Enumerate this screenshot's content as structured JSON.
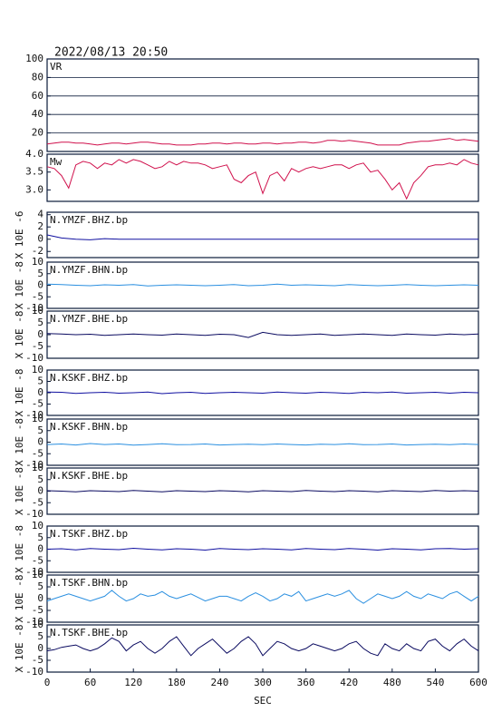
{
  "chart_data": [
    {
      "type": "line",
      "title": "2022/08/13 20:50",
      "label": "VR",
      "color": "#d0104c",
      "grid": true,
      "xlim": [
        0,
        600
      ],
      "ylim": [
        0,
        100
      ],
      "yticks": [
        20,
        40,
        60,
        80,
        100
      ],
      "x": [
        0,
        10,
        20,
        30,
        40,
        50,
        60,
        70,
        80,
        90,
        100,
        110,
        120,
        130,
        140,
        150,
        160,
        170,
        180,
        190,
        200,
        210,
        220,
        230,
        240,
        250,
        260,
        270,
        280,
        290,
        300,
        310,
        320,
        330,
        340,
        350,
        360,
        370,
        380,
        390,
        400,
        410,
        420,
        430,
        440,
        450,
        460,
        470,
        480,
        490,
        500,
        510,
        520,
        530,
        540,
        550,
        560,
        570,
        580,
        590,
        600
      ],
      "values": [
        8,
        9,
        10,
        10,
        9,
        9,
        8,
        7,
        8,
        9,
        9,
        8,
        9,
        10,
        10,
        9,
        8,
        8,
        7,
        7,
        7,
        8,
        8,
        9,
        9,
        8,
        9,
        9,
        8,
        8,
        9,
        9,
        8,
        9,
        9,
        10,
        10,
        9,
        10,
        12,
        12,
        11,
        12,
        11,
        10,
        9,
        7,
        7,
        7,
        7,
        9,
        10,
        11,
        11,
        12,
        13,
        14,
        12,
        13,
        12,
        11
      ]
    },
    {
      "type": "line",
      "label": "Mw",
      "color": "#d0104c",
      "xlim": [
        0,
        600
      ],
      "ylim": [
        2.68,
        4.0
      ],
      "yticks": [
        {
          "value": 3,
          "label": "3.0"
        },
        3.5,
        {
          "value": 4,
          "label": "4.0"
        }
      ],
      "x": [
        0,
        10,
        20,
        30,
        40,
        50,
        60,
        70,
        80,
        90,
        100,
        110,
        120,
        130,
        140,
        150,
        160,
        170,
        180,
        190,
        200,
        210,
        220,
        230,
        240,
        250,
        260,
        270,
        280,
        290,
        300,
        310,
        320,
        330,
        340,
        350,
        360,
        370,
        380,
        390,
        400,
        410,
        420,
        430,
        440,
        450,
        460,
        470,
        480,
        490,
        500,
        510,
        520,
        530,
        540,
        550,
        560,
        570,
        580,
        590,
        600
      ],
      "values": [
        3.65,
        3.6,
        3.4,
        3.05,
        3.7,
        3.8,
        3.75,
        3.6,
        3.75,
        3.7,
        3.85,
        3.75,
        3.85,
        3.8,
        3.7,
        3.6,
        3.65,
        3.8,
        3.7,
        3.8,
        3.75,
        3.75,
        3.7,
        3.6,
        3.65,
        3.7,
        3.3,
        3.2,
        3.4,
        3.5,
        2.9,
        3.4,
        3.5,
        3.25,
        3.6,
        3.5,
        3.6,
        3.65,
        3.6,
        3.65,
        3.7,
        3.7,
        3.6,
        3.7,
        3.75,
        3.5,
        3.55,
        3.3,
        3.0,
        3.2,
        2.75,
        3.2,
        3.4,
        3.65,
        3.7,
        3.7,
        3.75,
        3.7,
        3.85,
        3.75,
        3.7
      ]
    },
    {
      "type": "line",
      "label": "N.YMZF.BHZ.bp",
      "ylabel": "X 10E -6",
      "color": "#1010a0",
      "xlim": [
        0,
        600
      ],
      "ylim": [
        -3,
        4.4
      ],
      "yticks": [
        -2,
        0,
        2,
        4
      ],
      "x": [
        0,
        20,
        40,
        60,
        80,
        100,
        120,
        140,
        160,
        180,
        200,
        220,
        240,
        260,
        280,
        300,
        320,
        340,
        360,
        380,
        400,
        420,
        440,
        460,
        480,
        500,
        520,
        540,
        560,
        580,
        600
      ],
      "values": [
        0.7,
        0.2,
        0,
        -0.1,
        0.1,
        0,
        0,
        0,
        0,
        0,
        0,
        0,
        0,
        0,
        0,
        0,
        0,
        0,
        0,
        0,
        0,
        0,
        0,
        0,
        0,
        0,
        0,
        0,
        0,
        0,
        0
      ]
    },
    {
      "type": "line",
      "label": "N.YMZF.BHN.bp",
      "ylabel": "X 10E -8",
      "color": "#2a8fe0",
      "xlim": [
        0,
        600
      ],
      "ylim": [
        -10,
        10
      ],
      "yticks": [
        -10,
        -5,
        0,
        5,
        10
      ],
      "x": [
        0,
        20,
        40,
        60,
        80,
        100,
        120,
        140,
        160,
        180,
        200,
        220,
        240,
        260,
        280,
        300,
        320,
        340,
        360,
        380,
        400,
        420,
        440,
        460,
        480,
        500,
        520,
        540,
        560,
        580,
        600
      ],
      "values": [
        0.5,
        0.3,
        0,
        -0.2,
        0.2,
        0,
        0.3,
        -0.3,
        0,
        0.2,
        0,
        -0.2,
        0,
        0.3,
        -0.2,
        0,
        0.5,
        0,
        0.2,
        0,
        -0.2,
        0.3,
        0,
        -0.2,
        0,
        0.3,
        0,
        -0.2,
        0,
        0.2,
        0
      ]
    },
    {
      "type": "line",
      "label": "N.YMZF.BHE.bp",
      "ylabel": "X 10E -8",
      "color": "#0a0a60",
      "xlim": [
        0,
        600
      ],
      "ylim": [
        -10,
        10
      ],
      "yticks": [
        -10,
        -5,
        0,
        5,
        10
      ],
      "x": [
        0,
        20,
        40,
        60,
        80,
        100,
        120,
        140,
        160,
        180,
        200,
        220,
        240,
        260,
        280,
        300,
        320,
        340,
        360,
        380,
        400,
        420,
        440,
        460,
        480,
        500,
        520,
        540,
        560,
        580,
        600
      ],
      "values": [
        0.5,
        0.3,
        0,
        0.2,
        -0.3,
        0,
        0.3,
        0,
        -0.2,
        0.3,
        0,
        -0.3,
        0.2,
        0,
        -1.2,
        1,
        0,
        -0.3,
        0,
        0.3,
        -0.3,
        0,
        0.3,
        0,
        -0.3,
        0.3,
        0,
        -0.2,
        0.3,
        0,
        0.3
      ]
    },
    {
      "type": "line",
      "label": "N.KSKF.BHZ.bp",
      "ylabel": "X 10E -8",
      "color": "#1010a0",
      "xlim": [
        0,
        600
      ],
      "ylim": [
        -10,
        10
      ],
      "yticks": [
        -10,
        -5,
        0,
        5,
        10
      ],
      "x": [
        0,
        20,
        40,
        60,
        80,
        100,
        120,
        140,
        160,
        180,
        200,
        220,
        240,
        260,
        280,
        300,
        320,
        340,
        360,
        380,
        400,
        420,
        440,
        460,
        480,
        500,
        520,
        540,
        560,
        580,
        600
      ],
      "values": [
        0.3,
        0.2,
        -0.3,
        0,
        0.2,
        -0.2,
        0,
        0.3,
        -0.4,
        0,
        0.2,
        -0.3,
        0,
        0.2,
        0,
        -0.2,
        0.3,
        0,
        -0.2,
        0.2,
        0,
        -0.3,
        0.2,
        0,
        0.3,
        -0.2,
        0,
        0.2,
        -0.2,
        0.2,
        0
      ]
    },
    {
      "type": "line",
      "label": "N.KSKF.BHN.bp",
      "ylabel": "X 10E -8",
      "color": "#2a8fe0",
      "xlim": [
        0,
        600
      ],
      "ylim": [
        -10,
        10
      ],
      "yticks": [
        -10,
        -5,
        0,
        5,
        10
      ],
      "x": [
        0,
        20,
        40,
        60,
        80,
        100,
        120,
        140,
        160,
        180,
        200,
        220,
        240,
        260,
        280,
        300,
        320,
        340,
        360,
        380,
        400,
        420,
        440,
        460,
        480,
        500,
        520,
        540,
        560,
        580,
        600
      ],
      "values": [
        -1,
        -0.8,
        -1.2,
        -0.6,
        -1,
        -0.8,
        -1.3,
        -1,
        -0.7,
        -1.1,
        -1,
        -0.8,
        -1.2,
        -1,
        -0.9,
        -1.1,
        -0.8,
        -1,
        -1.2,
        -0.9,
        -1,
        -0.7,
        -1.1,
        -1,
        -0.8,
        -1.2,
        -1,
        -0.9,
        -1.1,
        -0.8,
        -1
      ]
    },
    {
      "type": "line",
      "label": "N.KSKF.BHE.bp",
      "ylabel": "X 10E -8",
      "color": "#0a0a60",
      "xlim": [
        0,
        600
      ],
      "ylim": [
        -10,
        10
      ],
      "yticks": [
        -10,
        -5,
        0,
        5,
        10
      ],
      "x": [
        0,
        20,
        40,
        60,
        80,
        100,
        120,
        140,
        160,
        180,
        200,
        220,
        240,
        260,
        280,
        300,
        320,
        340,
        360,
        380,
        400,
        420,
        440,
        460,
        480,
        500,
        520,
        540,
        560,
        580,
        600
      ],
      "values": [
        0.2,
        0,
        -0.3,
        0.2,
        0,
        -0.2,
        0.3,
        0,
        -0.3,
        0.2,
        0,
        -0.2,
        0.2,
        0,
        -0.3,
        0.2,
        0,
        -0.2,
        0.3,
        0,
        -0.2,
        0.2,
        0,
        -0.3,
        0.2,
        0,
        -0.2,
        0.3,
        0,
        0.2,
        0
      ]
    },
    {
      "type": "line",
      "label": "N.TSKF.BHZ.bp",
      "ylabel": "X 10E -8",
      "color": "#1010a0",
      "xlim": [
        0,
        600
      ],
      "ylim": [
        -10,
        10
      ],
      "yticks": [
        -10,
        -5,
        0,
        5,
        10
      ],
      "x": [
        0,
        20,
        40,
        60,
        80,
        100,
        120,
        140,
        160,
        180,
        200,
        220,
        240,
        260,
        280,
        300,
        320,
        340,
        360,
        380,
        400,
        420,
        440,
        460,
        480,
        500,
        520,
        540,
        560,
        580,
        600
      ],
      "values": [
        0,
        0.2,
        -0.3,
        0.3,
        0,
        -0.2,
        0.4,
        0,
        -0.3,
        0.2,
        0,
        -0.4,
        0.3,
        0,
        -0.2,
        0.2,
        0,
        -0.3,
        0.3,
        0,
        -0.2,
        0.3,
        0,
        -0.4,
        0.2,
        0,
        -0.3,
        0.2,
        0.3,
        0,
        0.2
      ]
    },
    {
      "type": "line",
      "label": "N.TSKF.BHN.bp",
      "ylabel": "X 10E -8",
      "color": "#2a8fe0",
      "xlim": [
        0,
        600
      ],
      "ylim": [
        -10,
        10
      ],
      "yticks": [
        -10,
        -5,
        0,
        5,
        10
      ],
      "x": [
        0,
        10,
        20,
        30,
        40,
        50,
        60,
        70,
        80,
        90,
        100,
        110,
        120,
        130,
        140,
        150,
        160,
        170,
        180,
        190,
        200,
        210,
        220,
        230,
        240,
        250,
        260,
        270,
        280,
        290,
        300,
        310,
        320,
        330,
        340,
        350,
        360,
        370,
        380,
        390,
        400,
        410,
        420,
        430,
        440,
        450,
        460,
        470,
        480,
        490,
        500,
        510,
        520,
        530,
        540,
        550,
        560,
        570,
        580,
        590,
        600
      ],
      "values": [
        -1,
        0,
        1,
        2,
        1,
        0,
        -1,
        0,
        1,
        3.5,
        1,
        -1,
        0,
        2,
        1,
        1.5,
        3,
        1,
        0,
        1,
        2,
        0.5,
        -1,
        0,
        1,
        1,
        0,
        -1,
        1,
        2.5,
        1,
        -1,
        0,
        2,
        1,
        3,
        -1,
        0,
        1,
        2,
        1,
        2,
        3.5,
        0,
        -2,
        0,
        2,
        1,
        0,
        1,
        3,
        1,
        0,
        2,
        1,
        0,
        2,
        3,
        1,
        -1,
        1
      ]
    },
    {
      "type": "line",
      "label": "N.TSKF.BHE.bp",
      "ylabel": "X 10E -8",
      "color": "#0a0a60",
      "xlim": [
        0,
        600
      ],
      "ylim": [
        -10,
        10
      ],
      "yticks": [
        -10,
        -5,
        0,
        5,
        10
      ],
      "xticks": [
        0,
        60,
        120,
        180,
        240,
        300,
        360,
        420,
        480,
        540,
        600
      ],
      "xlabel": "SEC",
      "x": [
        0,
        10,
        20,
        30,
        40,
        50,
        60,
        70,
        80,
        90,
        100,
        110,
        120,
        130,
        140,
        150,
        160,
        170,
        180,
        190,
        200,
        210,
        220,
        230,
        240,
        250,
        260,
        270,
        280,
        290,
        300,
        310,
        320,
        330,
        340,
        350,
        360,
        370,
        380,
        390,
        400,
        410,
        420,
        430,
        440,
        450,
        460,
        470,
        480,
        490,
        500,
        510,
        520,
        530,
        540,
        550,
        560,
        570,
        580,
        590,
        600
      ],
      "values": [
        -1,
        -0.5,
        0.5,
        1,
        1.5,
        0,
        -1,
        0,
        2,
        4.5,
        3,
        -1,
        1.5,
        3,
        0,
        -2,
        0,
        3,
        5,
        1,
        -3,
        0,
        2,
        4,
        1,
        -2,
        0,
        3,
        5,
        2,
        -3,
        0,
        3,
        2,
        0,
        -1,
        0,
        2,
        1,
        0,
        -1,
        0,
        2,
        3,
        0,
        -2,
        -3,
        2,
        0,
        -1,
        2,
        0,
        -1,
        3,
        4,
        1,
        -1,
        2,
        4,
        1,
        -1
      ]
    }
  ]
}
